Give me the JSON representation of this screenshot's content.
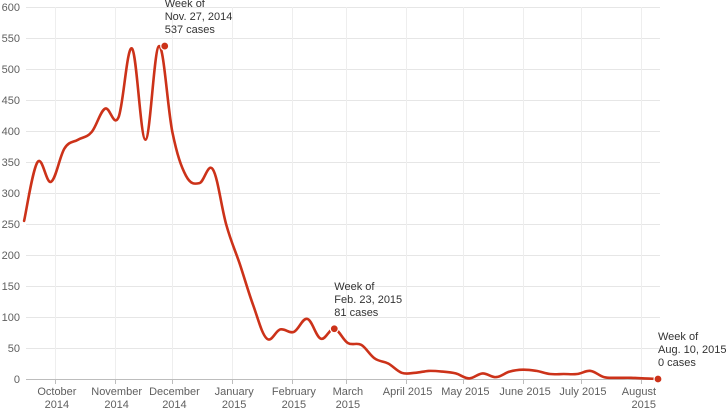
{
  "chart_data": {
    "type": "line",
    "title": "",
    "xlabel": "",
    "ylabel": "",
    "ylim": [
      0,
      600
    ],
    "grid": true,
    "color": "#cc3219",
    "y_ticks": [
      0,
      50,
      100,
      150,
      200,
      250,
      300,
      350,
      400,
      450,
      500,
      550,
      600
    ],
    "x_ticks": [
      {
        "date": "2014-10-01",
        "line1": "October",
        "line2": "2014"
      },
      {
        "date": "2014-11-01",
        "line1": "November",
        "line2": "2014"
      },
      {
        "date": "2014-12-01",
        "line1": "December",
        "line2": "2014"
      },
      {
        "date": "2015-01-01",
        "line1": "January",
        "line2": "2015"
      },
      {
        "date": "2015-02-01",
        "line1": "February",
        "line2": "2015"
      },
      {
        "date": "2015-03-01",
        "line1": "March",
        "line2": "2015"
      },
      {
        "date": "2015-04-01",
        "line1": "April 2015",
        "line2": ""
      },
      {
        "date": "2015-05-01",
        "line1": "May 2015",
        "line2": ""
      },
      {
        "date": "2015-06-01",
        "line1": "June 2015",
        "line2": ""
      },
      {
        "date": "2015-07-01",
        "line1": "July 2015",
        "line2": ""
      },
      {
        "date": "2015-08-01",
        "line1": "August",
        "line2": "2015"
      }
    ],
    "x_range": [
      "2014-09-16",
      "2015-08-10"
    ],
    "series": [
      {
        "x": [
          "2014-09-15",
          "2014-09-22",
          "2014-09-29",
          "2014-10-06",
          "2014-10-13",
          "2014-10-20",
          "2014-10-27",
          "2014-11-03",
          "2014-11-10",
          "2014-11-17",
          "2014-11-24",
          "2014-12-01",
          "2014-12-08",
          "2014-12-15",
          "2014-12-22",
          "2014-12-29",
          "2015-01-05",
          "2015-01-12",
          "2015-01-19",
          "2015-01-26",
          "2015-02-02",
          "2015-02-09",
          "2015-02-16",
          "2015-02-23",
          "2015-03-02",
          "2015-03-09",
          "2015-03-16",
          "2015-03-23",
          "2015-03-30",
          "2015-04-06",
          "2015-04-13",
          "2015-04-20",
          "2015-04-27",
          "2015-05-04",
          "2015-05-11",
          "2015-05-18",
          "2015-05-25",
          "2015-06-01",
          "2015-06-08",
          "2015-06-15",
          "2015-06-22",
          "2015-06-29",
          "2015-07-06",
          "2015-07-13",
          "2015-07-20",
          "2015-07-27",
          "2015-08-03",
          "2015-08-10"
        ],
        "values": [
          255,
          350,
          318,
          372,
          386,
          398,
          436,
          422,
          533,
          386,
          537,
          398,
          328,
          316,
          338,
          248,
          185,
          118,
          65,
          80,
          76,
          97,
          65,
          81,
          58,
          55,
          33,
          25,
          10,
          10,
          13,
          12,
          9,
          1,
          9,
          3,
          12,
          15,
          13,
          8,
          8,
          8,
          13,
          3,
          2,
          2,
          1,
          0
        ]
      }
    ],
    "annotations": [
      {
        "date": "2014-11-27",
        "value": 537,
        "line1": "Week of",
        "line2": "Nov. 27, 2014",
        "line3": "537 cases"
      },
      {
        "date": "2015-02-23",
        "value": 81,
        "line1": "Week of",
        "line2": "Feb. 23, 2015",
        "line3": "81 cases"
      },
      {
        "date": "2015-08-10",
        "value": 0,
        "line1": "Week of",
        "line2": "Aug. 10, 2015",
        "line3": "0 cases"
      }
    ]
  }
}
